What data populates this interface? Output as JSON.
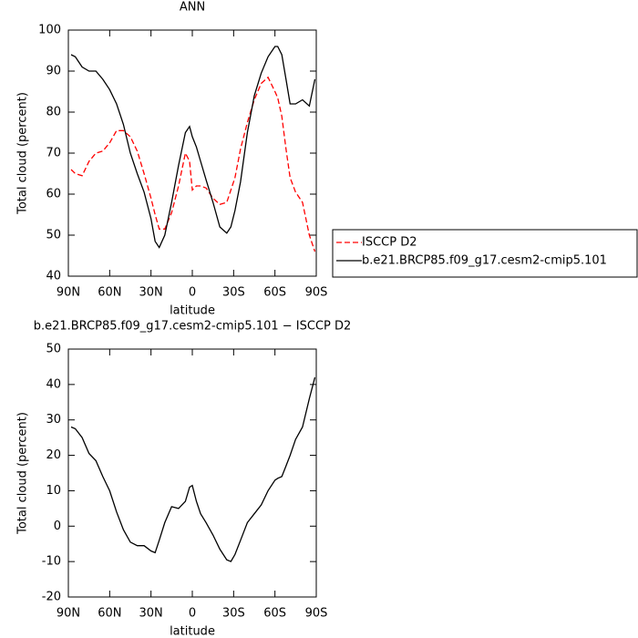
{
  "chart_data": [
    {
      "type": "line",
      "title": "ANN",
      "xlabel": "latitude",
      "ylabel": "Total cloud (percent)",
      "x": [
        88,
        85,
        80,
        75,
        70,
        65,
        60,
        55,
        50,
        45,
        40,
        35,
        30,
        27,
        24,
        20,
        15,
        10,
        5,
        2,
        0,
        -3,
        -6,
        -10,
        -15,
        -20,
        -25,
        -28,
        -31,
        -35,
        -40,
        -45,
        -50,
        -55,
        -60,
        -62,
        -65,
        -68,
        -71,
        -75,
        -80,
        -85,
        -89
      ],
      "series": [
        {
          "name": "ISCCP D2",
          "color": "#ff0000",
          "linestyle": "dashed",
          "values": [
            66,
            65,
            64.5,
            68,
            70,
            70.5,
            72.5,
            75.5,
            75.5,
            74,
            70.5,
            65,
            59,
            55,
            51.5,
            51.5,
            55.5,
            62,
            70,
            68,
            61,
            62,
            62,
            61.5,
            59,
            57.5,
            58,
            61,
            64,
            71,
            77.5,
            83,
            87,
            88.5,
            85,
            83.5,
            79,
            71,
            64,
            60.5,
            58,
            50,
            46
          ]
        },
        {
          "name": "b.e21.BRCP85.f09_g17.cesm2-cmip5.101",
          "color": "#000000",
          "linestyle": "solid",
          "values": [
            94,
            93.5,
            91,
            90,
            90,
            88,
            85.5,
            82,
            77,
            70,
            65,
            60.5,
            54,
            48.5,
            47,
            50,
            58,
            67,
            75,
            76.5,
            74,
            71.5,
            68,
            63.5,
            58,
            52,
            50.5,
            52,
            56,
            63,
            75,
            84,
            89.5,
            93.5,
            96,
            96,
            94,
            88,
            82,
            82,
            83,
            81.5,
            88
          ]
        }
      ],
      "xlim": [
        90,
        -90
      ],
      "xticks": [
        {
          "value": 90,
          "label": "90N"
        },
        {
          "value": 60,
          "label": "60N"
        },
        {
          "value": 30,
          "label": "30N"
        },
        0,
        {
          "value": -30,
          "label": "30S"
        },
        {
          "value": -60,
          "label": "60S"
        },
        {
          "value": -90,
          "label": "90S"
        }
      ],
      "ylim": [
        40,
        100
      ],
      "yticks": [
        40,
        50,
        60,
        70,
        80,
        90,
        100
      ],
      "legend": "right"
    },
    {
      "type": "line",
      "title": "b.e21.BRCP85.f09_g17.cesm2-cmip5.101 − ISCCP D2",
      "xlabel": "latitude",
      "ylabel": "Total cloud (percent)",
      "x": [
        88,
        85,
        80,
        75,
        70,
        65,
        60,
        55,
        50,
        45,
        40,
        35,
        30,
        27,
        24,
        20,
        15,
        10,
        5,
        2,
        0,
        -3,
        -6,
        -10,
        -15,
        -20,
        -25,
        -28,
        -31,
        -35,
        -40,
        -45,
        -50,
        -55,
        -60,
        -62,
        -65,
        -68,
        -71,
        -75,
        -80,
        -85,
        -89
      ],
      "series": [
        {
          "color": "#000000",
          "linestyle": "solid",
          "values": [
            28,
            27.5,
            25,
            20.5,
            18.5,
            14,
            10,
            4,
            -1,
            -4.5,
            -5.5,
            -5.5,
            -7,
            -7.5,
            -4,
            1,
            5.5,
            5,
            7,
            11,
            11.5,
            7,
            3.5,
            1,
            -2.5,
            -6.5,
            -9.5,
            -10,
            -8,
            -4,
            1,
            3.5,
            6,
            10,
            13,
            13.5,
            14,
            17,
            20,
            24.5,
            28,
            36,
            42
          ]
        }
      ],
      "xlim": [
        90,
        -90
      ],
      "xticks": [
        {
          "value": 90,
          "label": "90N"
        },
        {
          "value": 60,
          "label": "60N"
        },
        {
          "value": 30,
          "label": "30N"
        },
        0,
        {
          "value": -30,
          "label": "30S"
        },
        {
          "value": -60,
          "label": "60S"
        },
        {
          "value": -90,
          "label": "90S"
        }
      ],
      "ylim": [
        -20,
        50
      ],
      "yticks": [
        -20,
        -10,
        0,
        10,
        20,
        30,
        40,
        50
      ]
    }
  ]
}
